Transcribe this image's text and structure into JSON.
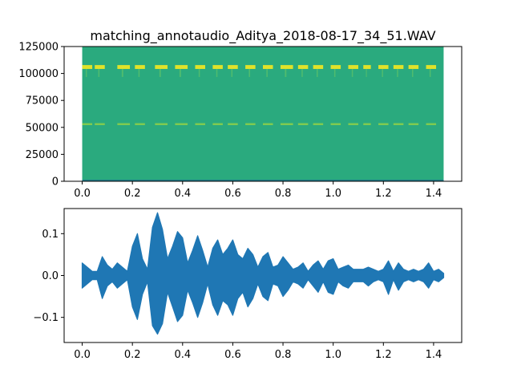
{
  "chart_data": [
    {
      "type": "heatmap",
      "title": "matching_annotaudio_Aditya_2018-08-17_34_51.WAV",
      "xlabel": "",
      "ylabel": "",
      "xlim": [
        -0.072,
        1.512
      ],
      "ylim": [
        0,
        125000
      ],
      "x_extent": [
        0.0,
        1.44
      ],
      "x_ticks": [
        0.0,
        0.2,
        0.4,
        0.6,
        0.8,
        1.0,
        1.2,
        1.4
      ],
      "x_tick_labels": [
        "0.0",
        "0.2",
        "0.4",
        "0.6",
        "0.8",
        "1.0",
        "1.2",
        "1.4"
      ],
      "y_ticks": [
        0,
        25000,
        50000,
        75000,
        100000,
        125000
      ],
      "y_tick_labels": [
        "0",
        "25000",
        "50000",
        "75000",
        "100000",
        "125000"
      ],
      "colormap": "viridis",
      "background_color": "#2aaa7e",
      "high_band": {
        "freq_center": 106000,
        "freq_halfwidth": 1800,
        "color": "#e0e32a"
      },
      "mid_band": {
        "freq_center": 53000,
        "freq_halfwidth": 900,
        "color": "#9fd640"
      },
      "low_band": {
        "freq_top": 1500,
        "color": "#1f7f8a"
      },
      "call_times": [
        [
          0.0,
          0.04
        ],
        [
          0.05,
          0.09
        ],
        [
          0.14,
          0.19
        ],
        [
          0.21,
          0.25
        ],
        [
          0.29,
          0.34
        ],
        [
          0.37,
          0.42
        ],
        [
          0.45,
          0.49
        ],
        [
          0.52,
          0.56
        ],
        [
          0.58,
          0.62
        ],
        [
          0.65,
          0.69
        ],
        [
          0.72,
          0.76
        ],
        [
          0.79,
          0.84
        ],
        [
          0.86,
          0.9
        ],
        [
          0.92,
          0.96
        ],
        [
          0.99,
          1.03
        ],
        [
          1.06,
          1.1
        ],
        [
          1.12,
          1.15
        ],
        [
          1.18,
          1.22
        ],
        [
          1.24,
          1.28
        ],
        [
          1.3,
          1.34
        ],
        [
          1.37,
          1.41
        ]
      ]
    },
    {
      "type": "line",
      "title": "",
      "xlabel": "",
      "ylabel": "",
      "xlim": [
        -0.072,
        1.512
      ],
      "ylim": [
        -0.16,
        0.16
      ],
      "x_ticks": [
        0.0,
        0.2,
        0.4,
        0.6,
        0.8,
        1.0,
        1.2,
        1.4
      ],
      "x_tick_labels": [
        "0.0",
        "0.2",
        "0.4",
        "0.6",
        "0.8",
        "1.0",
        "1.2",
        "1.4"
      ],
      "y_ticks": [
        -0.1,
        0.0,
        0.1
      ],
      "y_tick_labels": [
        "−0.1",
        "0.0",
        "0.1"
      ],
      "line_color": "#1f77b4",
      "series": [
        {
          "x": [
            0.0,
            0.0,
            0.02,
            0.04,
            0.06,
            0.08,
            0.1,
            0.12,
            0.14,
            0.16,
            0.18,
            0.2,
            0.22,
            0.24,
            0.26,
            0.28,
            0.3,
            0.32,
            0.34,
            0.36,
            0.38,
            0.4,
            0.42,
            0.44,
            0.46,
            0.48,
            0.5,
            0.52,
            0.54,
            0.56,
            0.58,
            0.6,
            0.62,
            0.64,
            0.66,
            0.68,
            0.7,
            0.72,
            0.74,
            0.76,
            0.78,
            0.8,
            0.82,
            0.84,
            0.86,
            0.88,
            0.9,
            0.92,
            0.94,
            0.96,
            0.98,
            1.0,
            1.02,
            1.04,
            1.06,
            1.08,
            1.1,
            1.12,
            1.14,
            1.16,
            1.18,
            1.2,
            1.22,
            1.24,
            1.26,
            1.28,
            1.3,
            1.32,
            1.34,
            1.36,
            1.38,
            1.4,
            1.42,
            1.44
          ],
          "upper": [
            0.005,
            0.03,
            0.02,
            0.01,
            0.01,
            0.045,
            0.025,
            0.015,
            0.03,
            0.02,
            0.01,
            0.07,
            0.1,
            0.04,
            0.015,
            0.115,
            0.15,
            0.11,
            0.04,
            0.07,
            0.105,
            0.09,
            0.03,
            0.06,
            0.095,
            0.06,
            0.02,
            0.065,
            0.085,
            0.05,
            0.065,
            0.085,
            0.05,
            0.04,
            0.065,
            0.05,
            0.02,
            0.045,
            0.055,
            0.02,
            0.025,
            0.045,
            0.03,
            0.015,
            0.02,
            0.03,
            0.01,
            0.025,
            0.035,
            0.015,
            0.035,
            0.04,
            0.015,
            0.02,
            0.025,
            0.015,
            0.015,
            0.015,
            0.02,
            0.015,
            0.01,
            0.015,
            0.035,
            0.01,
            0.03,
            0.015,
            0.01,
            0.015,
            0.01,
            0.015,
            0.03,
            0.01,
            0.015,
            0.005
          ],
          "lower": [
            -0.005,
            -0.03,
            -0.02,
            -0.01,
            -0.01,
            -0.055,
            -0.025,
            -0.015,
            -0.03,
            -0.02,
            -0.01,
            -0.075,
            -0.105,
            -0.045,
            -0.015,
            -0.12,
            -0.14,
            -0.115,
            -0.04,
            -0.075,
            -0.11,
            -0.095,
            -0.035,
            -0.065,
            -0.1,
            -0.065,
            -0.02,
            -0.07,
            -0.095,
            -0.06,
            -0.07,
            -0.095,
            -0.055,
            -0.04,
            -0.075,
            -0.055,
            -0.02,
            -0.05,
            -0.06,
            -0.02,
            -0.025,
            -0.05,
            -0.035,
            -0.015,
            -0.02,
            -0.03,
            -0.01,
            -0.025,
            -0.04,
            -0.015,
            -0.04,
            -0.045,
            -0.015,
            -0.025,
            -0.03,
            -0.015,
            -0.015,
            -0.015,
            -0.025,
            -0.015,
            -0.01,
            -0.015,
            -0.045,
            -0.01,
            -0.035,
            -0.015,
            -0.01,
            -0.015,
            -0.01,
            -0.015,
            -0.03,
            -0.01,
            -0.015,
            -0.005
          ]
        }
      ]
    }
  ]
}
